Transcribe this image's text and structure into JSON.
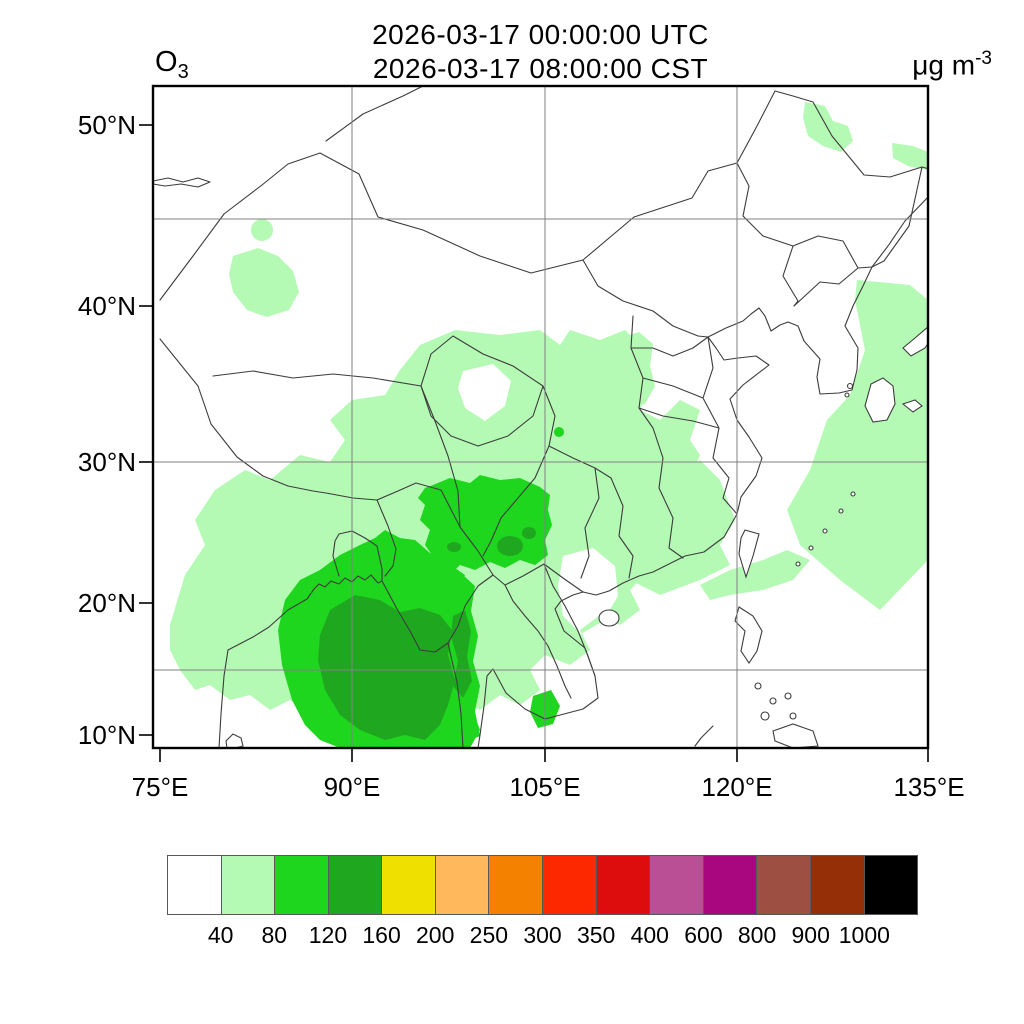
{
  "header": {
    "title_line1": "2026-03-17 00:00:00 UTC",
    "title_line2": "2026-03-17 08:00:00 CST",
    "species_base": "O",
    "species_subscript": "3",
    "units_base": "μg m",
    "units_exponent": "-3"
  },
  "map": {
    "lat_labels": [
      "50°N",
      "40°N",
      "30°N",
      "20°N",
      "10°N"
    ],
    "lon_labels": [
      "75°E",
      "90°E",
      "105°E",
      "120°E",
      "135°E"
    ]
  },
  "colorbar": {
    "labels": [
      "40",
      "80",
      "120",
      "160",
      "200",
      "250",
      "300",
      "350",
      "400",
      "600",
      "800",
      "900",
      "1000"
    ],
    "colors": [
      "#ffffff",
      "#b4fab4",
      "#1fd61f",
      "#1fa81f",
      "#f0e000",
      "#ffb85c",
      "#f48200",
      "#fe2800",
      "#dd0d0d",
      "#bb4f96",
      "#a8077f",
      "#9d4f41",
      "#952f08",
      "#000000"
    ]
  },
  "palette": {
    "fill_light": "#b4fab4",
    "fill_mid": "#1fd61f",
    "fill_dark": "#1fa81f",
    "border_line": "#3c3c3c",
    "grid_line": "#828282",
    "frame": "#000000"
  },
  "chart_data": {
    "type": "heatmap",
    "subtype": "filled-contour-map",
    "variable": "O3",
    "units": "μg m-3",
    "valid_time_utc": "2026-03-17 00:00:00 UTC",
    "valid_time_local": "2026-03-17 08:00:00 CST",
    "projection": "mercator",
    "lon_range": [
      75,
      135
    ],
    "lat_range": [
      10,
      50
    ],
    "lon_tick_values": [
      75,
      90,
      105,
      120,
      135
    ],
    "lat_tick_values": [
      10,
      20,
      30,
      40,
      50
    ],
    "gridline_lons": [
      90,
      105,
      120
    ],
    "gridline_lats": [
      15,
      30,
      45
    ],
    "grid_on": true,
    "legend_position": "bottom",
    "contour_levels": [
      40,
      80,
      120,
      160,
      200,
      250,
      300,
      350,
      400,
      600,
      800,
      900,
      1000
    ],
    "level_colors": [
      "#ffffff",
      "#b4fab4",
      "#1fd61f",
      "#1fa81f",
      "#f0e000",
      "#ffb85c",
      "#f48200",
      "#fe2800",
      "#dd0d0d",
      "#bb4f96",
      "#a8077f",
      "#9d4f41",
      "#952f08",
      "#000000"
    ],
    "observed_regions": [
      {
        "range_ugm3": "40-80",
        "color": "#b4fab4",
        "areas": [
          "broad area over Bay of Bengal, northeast India and Indochina",
          "central and southern China (Sichuan to Guizhou/Guangxi arm reaching ~35N)",
          "southeast China coastal strip",
          "Yellow Sea, Korea Strait, Kyushu/Ryukyu area of Japan",
          "two small patches in Xinjiang (~80-87E, 40-45N)",
          "small patches in northeast China near 49-51N",
          "scattered patches over northern South China Sea"
        ]
      },
      {
        "range_ugm3": "80-120",
        "color": "#1fd61f",
        "areas": [
          "large maximum over Bay of Bengal / Bangladesh / Myanmar (~85-95E, 9-22N)",
          "Yunnan-Guizhou plateau blob (~96-107E, 22-27N)",
          "narrow meridional band along western Myanmar coast"
        ]
      },
      {
        "range_ugm3": "120-160",
        "color": "#1fa81f",
        "areas": [
          "core of the Bay of Bengal maximum (~87-95E, 10-19N)",
          "small cores embedded in the Yunnan-Guizhou blob"
        ]
      },
      {
        "range_ugm3": ">160",
        "areas": []
      }
    ],
    "max_category_shown": "120-160"
  }
}
